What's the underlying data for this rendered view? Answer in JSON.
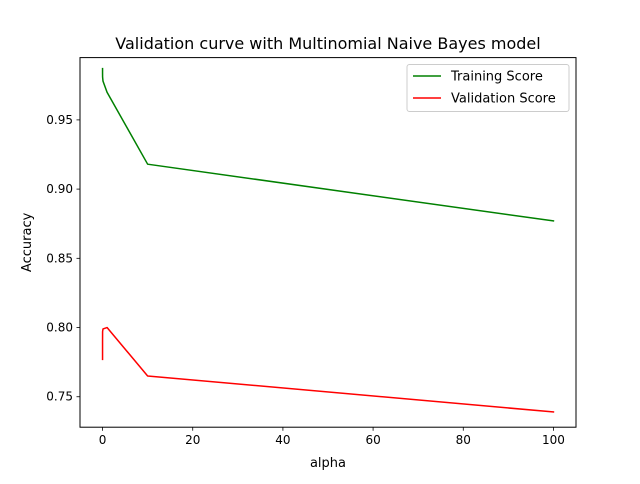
{
  "chart_data": {
    "type": "line",
    "title": "Validation curve with Multinomial Naive Bayes model",
    "xlabel": "alpha",
    "ylabel": "Accuracy",
    "xlim": [
      -5,
      105
    ],
    "ylim": [
      0.728,
      0.995
    ],
    "x_ticks": [
      0,
      20,
      40,
      60,
      80,
      100
    ],
    "y_ticks": [
      0.75,
      0.8,
      0.85,
      0.9,
      0.95
    ],
    "x_tick_labels": [
      "0",
      "20",
      "40",
      "60",
      "80",
      "100"
    ],
    "y_tick_labels": [
      "0.75",
      "0.80",
      "0.85",
      "0.90",
      "0.95"
    ],
    "grid": false,
    "legend_position": "top-right",
    "series": [
      {
        "name": "Training Score",
        "color": "#008000",
        "x": [
          0.0001,
          0.001,
          0.01,
          0.1,
          1,
          10,
          100
        ],
        "y": [
          0.987,
          0.984,
          0.981,
          0.978,
          0.97,
          0.918,
          0.877
        ]
      },
      {
        "name": "Validation Score",
        "color": "#ff0000",
        "x": [
          0.0001,
          0.001,
          0.01,
          0.1,
          1,
          10,
          100
        ],
        "y": [
          0.777,
          0.789,
          0.797,
          0.799,
          0.8,
          0.765,
          0.739
        ]
      }
    ]
  }
}
